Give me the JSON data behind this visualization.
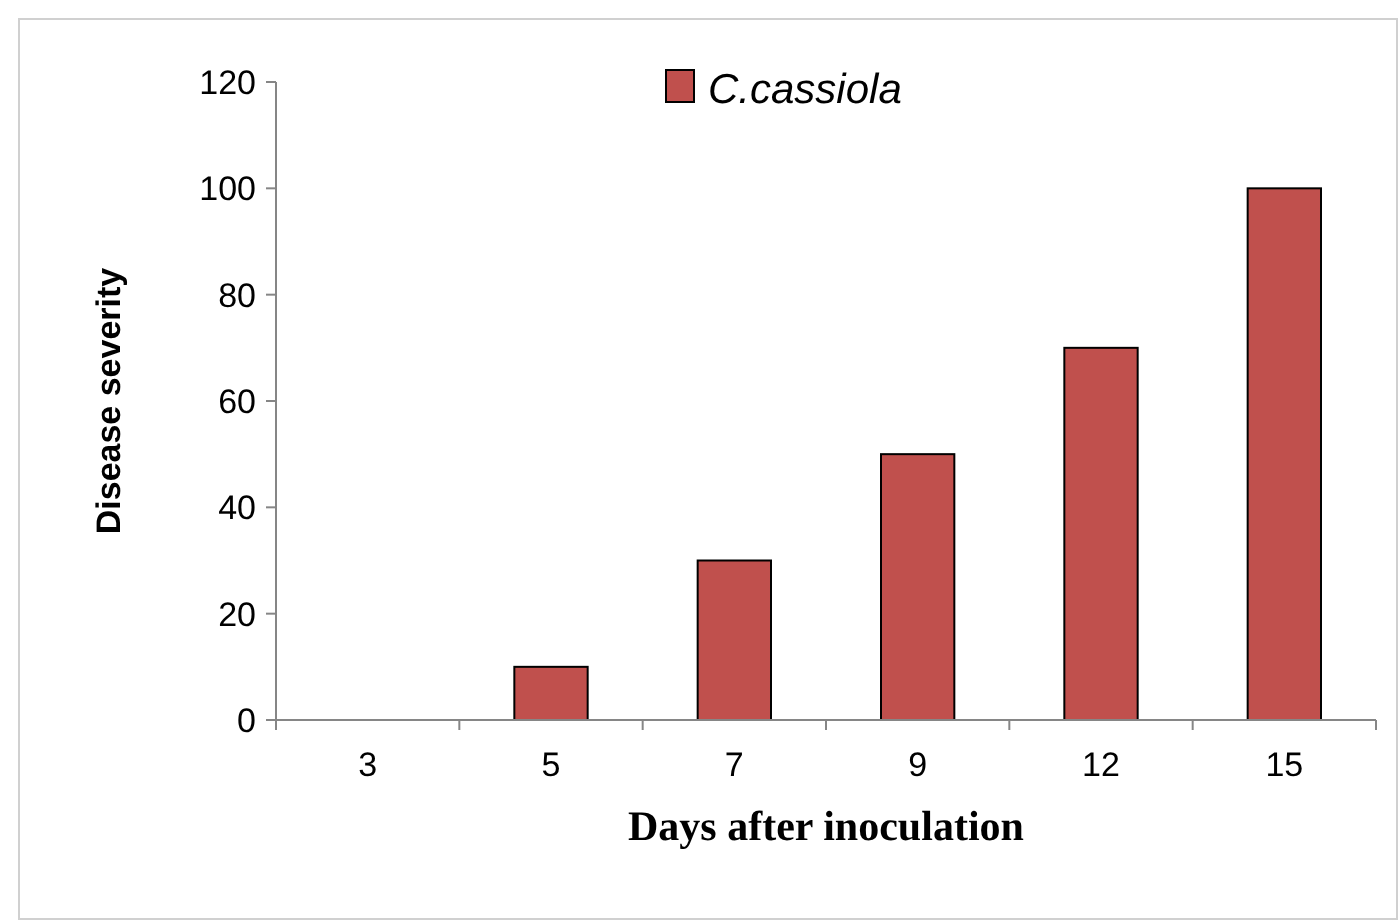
{
  "chart_data": {
    "type": "bar",
    "xlabel": "Days after inoculation",
    "ylabel": "Disease severity",
    "categories": [
      "3",
      "5",
      "7",
      "9",
      "12",
      "15"
    ],
    "series": [
      {
        "name": "C.cassiola",
        "color": "#c0504d",
        "values": [
          0,
          10,
          30,
          50,
          70,
          100
        ]
      }
    ],
    "ylim": [
      0,
      120
    ],
    "yticks": [
      0,
      20,
      40,
      60,
      80,
      100,
      120
    ],
    "grid": false,
    "legend": "top"
  }
}
